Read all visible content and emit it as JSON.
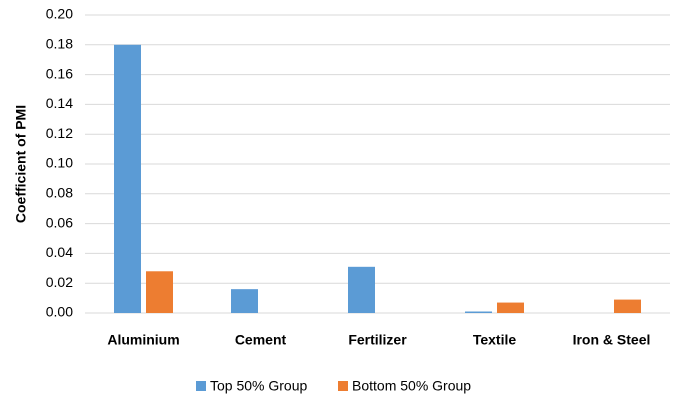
{
  "chart_data": {
    "type": "bar",
    "y_label": "Coefficient of PMI",
    "categories": [
      "Aluminium",
      "Cement",
      "Fertilizer",
      "Textile",
      "Iron & Steel"
    ],
    "series": [
      {
        "name": "Top 50% Group",
        "color": "#5b9bd5",
        "values": [
          0.18,
          0.016,
          0.031,
          0.001,
          0
        ]
      },
      {
        "name": "Bottom 50% Group",
        "color": "#ed7d31",
        "values": [
          0.028,
          0,
          0,
          0.007,
          0.009
        ]
      }
    ],
    "ylim": [
      0,
      0.2
    ],
    "yticks": [
      {
        "value": 0,
        "label": "0.00"
      },
      {
        "value": 0.02,
        "label": "0.02"
      },
      {
        "value": 0.04,
        "label": "0.04"
      },
      {
        "value": 0.06,
        "label": "0.06"
      },
      {
        "value": 0.08,
        "label": "0.08"
      },
      {
        "value": 0.1,
        "label": "0.10"
      },
      {
        "value": 0.12,
        "label": "0.12"
      },
      {
        "value": 0.14,
        "label": "0.14"
      },
      {
        "value": 0.16,
        "label": "0.16"
      },
      {
        "value": 0.18,
        "label": "0.18"
      },
      {
        "value": 0.2,
        "label": "0.20"
      }
    ],
    "grid": true,
    "legend": "bottom"
  }
}
